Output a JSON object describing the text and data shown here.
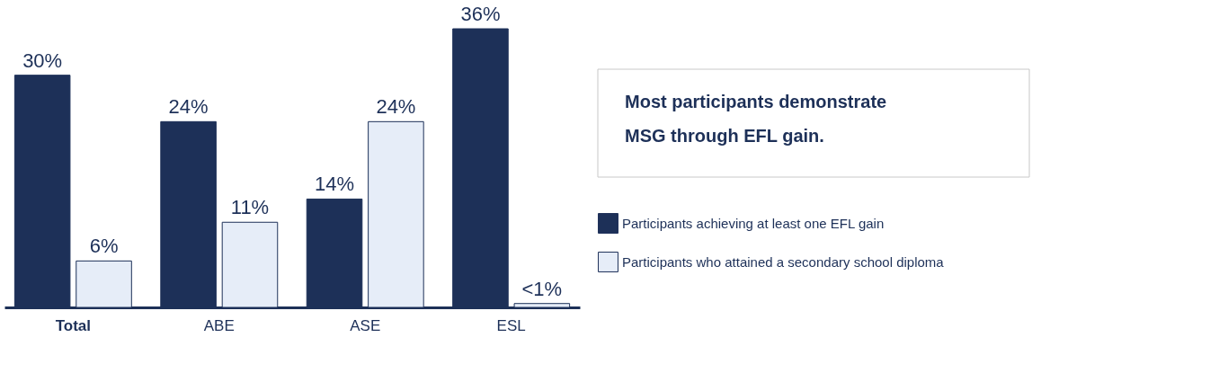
{
  "chart_data": {
    "type": "bar",
    "title": "Most participants demonstrate MSG through EFL gain.",
    "categories": [
      "Total",
      "ABE",
      "ASE",
      "ESL"
    ],
    "series": [
      {
        "name": "Participants achieving at least one EFL gain",
        "color": "#1d3058",
        "values": [
          30,
          24,
          14,
          36
        ],
        "value_labels": [
          "30%",
          "24%",
          "14%",
          "36%"
        ]
      },
      {
        "name": "Participants who attained a secondary school diploma",
        "color": "#e6edf8",
        "values": [
          6,
          11,
          24,
          0.5
        ],
        "value_labels": [
          "6%",
          "11%",
          "24%",
          "<1%"
        ]
      }
    ],
    "legend": "right",
    "grid": false
  }
}
